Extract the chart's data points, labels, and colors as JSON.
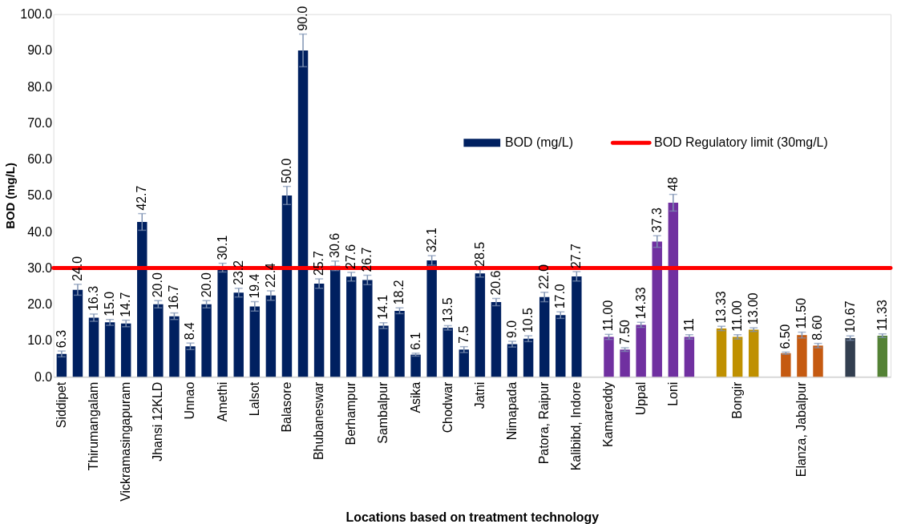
{
  "chart_data": {
    "type": "bar",
    "xlabel": "Locations based on treatment technology",
    "ylabel": "BOD (mg/L)",
    "categories": [
      "Siddipet",
      null,
      "Thirumangalam",
      null,
      "Vickramasingapuram",
      null,
      "Jhansi 12KLD",
      null,
      "Unnao",
      null,
      "Amethi",
      null,
      "Lalsot",
      null,
      "Balasore",
      null,
      "Bhubaneswar",
      null,
      "Berhampur",
      null,
      "Sambalpur",
      null,
      "Asika",
      null,
      "Chodwar",
      null,
      "Jatni",
      null,
      "Nimapada",
      null,
      "Patora, Raipur",
      null,
      "Kalibibd, Indore",
      null,
      "Kamareddy",
      null,
      "Uppal",
      null,
      "Loni",
      null,
      null,
      null,
      "Bongir",
      null,
      null,
      null,
      "Elanza, Jabalpur",
      null,
      null,
      null,
      null,
      null
    ],
    "series": [
      {
        "name": "BOD (mg/L)",
        "color": "#002060",
        "values": [
          6.3,
          24.0,
          16.3,
          15.0,
          14.7,
          42.7,
          20.0,
          16.7,
          8.4,
          20.0,
          30.1,
          23.2,
          19.4,
          22.4,
          50.0,
          90.0,
          25.7,
          30.6,
          27.6,
          26.7,
          14.1,
          18.2,
          6.1,
          32.1,
          13.5,
          7.5,
          28.5,
          20.6,
          9.0,
          10.5,
          22.0,
          17.0,
          27.7,
          null,
          11.0,
          7.5,
          14.33,
          37.3,
          48,
          11,
          null,
          13.33,
          11.0,
          13.0,
          null,
          6.5,
          11.5,
          8.6,
          null,
          10.67,
          null,
          11.33
        ],
        "value_labels": [
          "6.3",
          "24.0",
          "16.3",
          "15.0",
          "14.7",
          "42.7",
          "20.0",
          "16.7",
          "8.4",
          "20.0",
          "30.1",
          "23.2",
          "19.4",
          "22.4",
          "50.0",
          "90.0",
          "25.7",
          "30.6",
          "27.6",
          "26.7",
          "14.1",
          "18.2",
          "6.1",
          "32.1",
          "13.5",
          "7.5",
          "28.5",
          "20.6",
          "9.0",
          "10.5",
          "22.0",
          "17.0",
          "27.7",
          null,
          "11.00",
          "7.50",
          "14.33",
          "37.3",
          "48",
          "11",
          null,
          "13.33",
          "11.00",
          "13.00",
          null,
          "6.50",
          "11.50",
          "8.60",
          null,
          "10.67",
          null,
          "11.33"
        ],
        "errors": [
          0.8,
          1.5,
          1.0,
          0.8,
          0.9,
          2.3,
          1.0,
          0.9,
          0.9,
          1.0,
          1.2,
          1.2,
          1.3,
          1.3,
          2.5,
          4.5,
          1.3,
          1.3,
          1.2,
          1.3,
          0.8,
          0.8,
          0.4,
          1.3,
          0.6,
          0.8,
          1.0,
          1.0,
          0.8,
          0.8,
          1.3,
          0.9,
          1.3,
          null,
          0.7,
          0.5,
          0.7,
          1.6,
          2.3,
          0.6,
          null,
          0.6,
          0.6,
          0.5,
          null,
          0.3,
          0.8,
          0.6,
          null,
          0.6,
          null,
          0.5
        ],
        "colors": [
          "#002060",
          "#002060",
          "#002060",
          "#002060",
          "#002060",
          "#002060",
          "#002060",
          "#002060",
          "#002060",
          "#002060",
          "#002060",
          "#002060",
          "#002060",
          "#002060",
          "#002060",
          "#002060",
          "#002060",
          "#002060",
          "#002060",
          "#002060",
          "#002060",
          "#002060",
          "#002060",
          "#002060",
          "#002060",
          "#002060",
          "#002060",
          "#002060",
          "#002060",
          "#002060",
          "#002060",
          "#002060",
          "#002060",
          null,
          "#7030a0",
          "#7030a0",
          "#7030a0",
          "#7030a0",
          "#7030a0",
          "#7030a0",
          null,
          "#bf9000",
          "#bf9000",
          "#bf9000",
          null,
          "#c55a11",
          "#c55a11",
          "#c55a11",
          null,
          "#333f50",
          null,
          "#548235"
        ]
      }
    ],
    "ref_lines": [
      {
        "axis": "y",
        "value": 30,
        "label": "BOD Regulatory limit (30mg/L)",
        "color": "#ff0000"
      }
    ],
    "ylim": [
      0,
      100
    ],
    "yticks": [
      {
        "value": 0,
        "label": "0.0"
      },
      {
        "value": 10,
        "label": "10.0"
      },
      {
        "value": 20,
        "label": "20.0"
      },
      {
        "value": 30,
        "label": "30.0"
      },
      {
        "value": 40,
        "label": "40.0"
      },
      {
        "value": 50,
        "label": "50.0"
      },
      {
        "value": 60,
        "label": "60.0"
      },
      {
        "value": 70,
        "label": "70.0"
      },
      {
        "value": 80,
        "label": "80.0"
      },
      {
        "value": 90,
        "label": "90.0"
      },
      {
        "value": 100,
        "label": "100.0"
      }
    ],
    "grid": false,
    "legend": "top right"
  }
}
